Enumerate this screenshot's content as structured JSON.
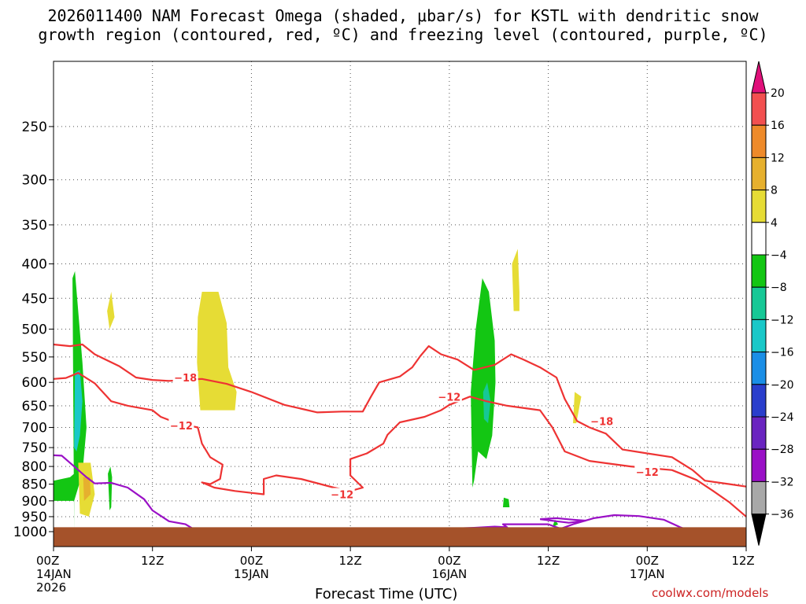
{
  "title_line_1": "2026011400 NAM Forecast Omega (shaded, μbar/s) for KSTL with dendritic snow",
  "title_line_2": "growth region (contoured, red, ºC) and freezing level (contoured, purple, ºC)",
  "credit": "coolwx.com/models",
  "chart_data": {
    "type": "area",
    "title": "2026011400 NAM Forecast Omega (shaded, μbar/s) for KSTL with dendritic snow growth region (contoured, red, ºC) and freezing level (contoured, purple, ºC)",
    "xlabel": "Forecast Time (UTC)",
    "ylabel": "",
    "x_unit": "forecast hour from 00Z 14 JAN 2026",
    "xlim": [
      0,
      84
    ],
    "ylim_hPa": [
      1000,
      200
    ],
    "y_scale": "log-pressure",
    "grid": true,
    "x_ticks": [
      {
        "hour": 0,
        "lines": [
          "00Z",
          "14JAN",
          "2026"
        ]
      },
      {
        "hour": 12,
        "lines": [
          "12Z"
        ]
      },
      {
        "hour": 24,
        "lines": [
          "00Z",
          "15JAN"
        ]
      },
      {
        "hour": 36,
        "lines": [
          "12Z"
        ]
      },
      {
        "hour": 48,
        "lines": [
          "00Z",
          "16JAN"
        ]
      },
      {
        "hour": 60,
        "lines": [
          "12Z"
        ]
      },
      {
        "hour": 72,
        "lines": [
          "00Z",
          "17JAN"
        ]
      },
      {
        "hour": 84,
        "lines": [
          "12Z"
        ]
      }
    ],
    "y_ticks": [
      250,
      300,
      350,
      400,
      450,
      500,
      550,
      600,
      650,
      700,
      750,
      800,
      850,
      900,
      950,
      1000
    ],
    "colorbar": {
      "labels": [
        "20",
        "16",
        "12",
        "8",
        "4",
        "−4",
        "−8",
        "−12",
        "−16",
        "−20",
        "−24",
        "−28",
        "−32",
        "−36"
      ],
      "bins": [
        {
          "min": 20,
          "max": null,
          "color": "#e0107a"
        },
        {
          "min": 16,
          "max": 20,
          "color": "#f25050"
        },
        {
          "min": 12,
          "max": 16,
          "color": "#ee8a2a"
        },
        {
          "min": 8,
          "max": 12,
          "color": "#e6b02e"
        },
        {
          "min": 4,
          "max": 8,
          "color": "#e6dc35"
        },
        {
          "min": -4,
          "max": 4,
          "color": "#ffffff"
        },
        {
          "min": -8,
          "max": -4,
          "color": "#13c613"
        },
        {
          "min": -12,
          "max": -8,
          "color": "#16c896"
        },
        {
          "min": -16,
          "max": -12,
          "color": "#19c8c8"
        },
        {
          "min": -20,
          "max": -16,
          "color": "#1a8ee6"
        },
        {
          "min": -24,
          "max": -20,
          "color": "#2a3ecc"
        },
        {
          "min": -28,
          "max": -24,
          "color": "#6a24c0"
        },
        {
          "min": -32,
          "max": -28,
          "color": "#9a10c6"
        },
        {
          "min": -36,
          "max": -32,
          "color": "#a8a8a8"
        },
        {
          "min": null,
          "max": -36,
          "color": "#000000"
        }
      ]
    },
    "omega_regions": [
      {
        "name": "ascent-1",
        "value": -6,
        "color": "#13c613",
        "points": [
          [
            2.5,
            1000
          ],
          [
            2.3,
            420
          ],
          [
            2.6,
            410
          ],
          [
            3.5,
            560
          ],
          [
            4.0,
            700
          ],
          [
            3.5,
            820
          ],
          [
            2.5,
            900
          ],
          [
            0,
            900
          ],
          [
            0,
            840
          ],
          [
            2.0,
            830
          ],
          [
            2.5,
            820
          ]
        ]
      },
      {
        "name": "ascent-1c",
        "value": -14,
        "color": "#19c8c8",
        "points": [
          [
            2.5,
            750
          ],
          [
            2.6,
            580
          ],
          [
            3.2,
            575
          ],
          [
            3.5,
            640
          ],
          [
            3.2,
            720
          ],
          [
            2.8,
            760
          ]
        ]
      },
      {
        "name": "ascent-2",
        "value": -6,
        "color": "#13c613",
        "points": [
          [
            6.8,
            930
          ],
          [
            6.6,
            820
          ],
          [
            6.9,
            800
          ],
          [
            7.1,
            830
          ],
          [
            7.0,
            920
          ]
        ]
      },
      {
        "name": "ascent-3",
        "value": -6,
        "color": "#13c613",
        "points": [
          [
            50.8,
            860
          ],
          [
            50.6,
            620
          ],
          [
            51.2,
            500
          ],
          [
            52.0,
            420
          ],
          [
            52.8,
            440
          ],
          [
            53.5,
            520
          ],
          [
            53.6,
            600
          ],
          [
            53.2,
            720
          ],
          [
            52.5,
            780
          ],
          [
            51.5,
            760
          ],
          [
            51.0,
            840
          ]
        ]
      },
      {
        "name": "ascent-3c",
        "value": -12,
        "color": "#16c896",
        "points": [
          [
            52.2,
            680
          ],
          [
            52.1,
            620
          ],
          [
            52.6,
            600
          ],
          [
            53.0,
            640
          ],
          [
            52.7,
            690
          ]
        ]
      },
      {
        "name": "ascent-4",
        "value": -6,
        "color": "#13c613",
        "points": [
          [
            54.5,
            920
          ],
          [
            54.6,
            890
          ],
          [
            55.2,
            895
          ],
          [
            55.3,
            920
          ]
        ]
      },
      {
        "name": "ascent-5",
        "value": -6,
        "color": "#13c613",
        "points": [
          [
            60.5,
            985
          ],
          [
            60.8,
            960
          ],
          [
            61.2,
            975
          ]
        ]
      },
      {
        "name": "descent-1",
        "value": 6,
        "color": "#e6dc35",
        "points": [
          [
            3.2,
            940
          ],
          [
            3.0,
            790
          ],
          [
            4.5,
            790
          ],
          [
            5.0,
            880
          ],
          [
            4.3,
            950
          ]
        ]
      },
      {
        "name": "descent-1b",
        "value": 9,
        "color": "#e6b02e",
        "points": [
          [
            3.7,
            900
          ],
          [
            3.6,
            830
          ],
          [
            4.4,
            830
          ],
          [
            4.5,
            880
          ]
        ]
      },
      {
        "name": "descent-2",
        "value": 6,
        "color": "#e6dc35",
        "points": [
          [
            6.8,
            500
          ],
          [
            6.5,
            470
          ],
          [
            7.0,
            440
          ],
          [
            7.4,
            480
          ]
        ]
      },
      {
        "name": "descent-3",
        "value": 6,
        "color": "#e6dc35",
        "points": [
          [
            17.8,
            660
          ],
          [
            17.4,
            560
          ],
          [
            17.5,
            480
          ],
          [
            18.0,
            440
          ],
          [
            20.0,
            440
          ],
          [
            21.0,
            490
          ],
          [
            21.2,
            570
          ],
          [
            22.2,
            620
          ],
          [
            22.0,
            660
          ]
        ]
      },
      {
        "name": "descent-4",
        "value": 6,
        "color": "#e6dc35",
        "points": [
          [
            55.8,
            470
          ],
          [
            55.6,
            400
          ],
          [
            56.3,
            380
          ],
          [
            56.5,
            440
          ],
          [
            56.5,
            470
          ]
        ]
      },
      {
        "name": "descent-5",
        "value": 6,
        "color": "#e6dc35",
        "points": [
          [
            63.0,
            690
          ],
          [
            63.2,
            620
          ],
          [
            64.0,
            630
          ],
          [
            63.4,
            690
          ]
        ]
      }
    ],
    "contours": [
      {
        "name": "dgz-minus12",
        "level": -12,
        "color": "#ee3333",
        "labels": [
          {
            "text": "−12",
            "at": [
              15.5,
              695
            ]
          },
          {
            "text": "−12",
            "at": [
              35.0,
              880
            ]
          },
          {
            "text": "−12",
            "at": [
              48.0,
              630
            ]
          },
          {
            "text": "−12",
            "at": [
              72.0,
              815
            ]
          }
        ],
        "points": [
          [
            0,
            593
          ],
          [
            1.5,
            591
          ],
          [
            3.0,
            581
          ],
          [
            5.0,
            602
          ],
          [
            7.0,
            640
          ],
          [
            9.0,
            650
          ],
          [
            12.0,
            660
          ],
          [
            13.0,
            675
          ],
          [
            15.0,
            690
          ],
          [
            17.5,
            700
          ],
          [
            18.0,
            740
          ],
          [
            19.0,
            775
          ],
          [
            20.5,
            795
          ],
          [
            20.2,
            835
          ],
          [
            19.0,
            850
          ],
          [
            18.0,
            845
          ],
          [
            19.5,
            860
          ],
          [
            22.0,
            870
          ],
          [
            25.5,
            880
          ],
          [
            25.5,
            835
          ],
          [
            27.0,
            825
          ],
          [
            30.0,
            835
          ],
          [
            34.0,
            860
          ],
          [
            36.0,
            870
          ],
          [
            37.5,
            860
          ],
          [
            36.0,
            825
          ],
          [
            36.0,
            780
          ],
          [
            38.0,
            765
          ],
          [
            40.0,
            740
          ],
          [
            40.5,
            718
          ],
          [
            42.0,
            688
          ],
          [
            45.0,
            675
          ],
          [
            47.0,
            660
          ],
          [
            48.0,
            648
          ],
          [
            50.5,
            630
          ],
          [
            52.5,
            640
          ],
          [
            55.0,
            650
          ],
          [
            59.0,
            660
          ],
          [
            60.5,
            700
          ],
          [
            62.0,
            760
          ],
          [
            65.0,
            785
          ],
          [
            70.0,
            800
          ],
          [
            75.0,
            810
          ],
          [
            78.0,
            838
          ],
          [
            80.0,
            870
          ],
          [
            82.0,
            905
          ],
          [
            84,
            950
          ]
        ]
      },
      {
        "name": "dgz-minus18",
        "level": -18,
        "color": "#ee3333",
        "labels": [
          {
            "text": "−18",
            "at": [
              16.0,
              590
            ]
          },
          {
            "text": "−18",
            "at": [
              66.5,
              685
            ]
          }
        ],
        "points": [
          [
            0,
            527
          ],
          [
            2.0,
            530
          ],
          [
            3.5,
            527
          ],
          [
            5.0,
            545
          ],
          [
            8.0,
            568
          ],
          [
            10.0,
            590
          ],
          [
            12.0,
            595
          ],
          [
            14.0,
            597
          ],
          [
            18.0,
            593
          ],
          [
            21.0,
            603
          ],
          [
            24.0,
            620
          ],
          [
            28.0,
            648
          ],
          [
            32.0,
            665
          ],
          [
            35.0,
            663
          ],
          [
            37.5,
            663
          ],
          [
            38.5,
            630
          ],
          [
            39.5,
            600
          ],
          [
            42.0,
            588
          ],
          [
            43.5,
            570
          ],
          [
            44.5,
            548
          ],
          [
            45.5,
            530
          ],
          [
            47.0,
            545
          ],
          [
            49.0,
            555
          ],
          [
            51.0,
            575
          ],
          [
            53.5,
            565
          ],
          [
            55.5,
            545
          ],
          [
            57.0,
            555
          ],
          [
            59.0,
            570
          ],
          [
            61.0,
            590
          ],
          [
            62.0,
            635
          ],
          [
            63.5,
            685
          ],
          [
            65.0,
            700
          ],
          [
            67.0,
            715
          ],
          [
            69.0,
            755
          ],
          [
            72.0,
            765
          ],
          [
            75.0,
            775
          ],
          [
            77.5,
            810
          ],
          [
            79.0,
            840
          ],
          [
            82.0,
            850
          ],
          [
            84,
            857
          ]
        ]
      },
      {
        "name": "freezing-level",
        "level": 0,
        "color": "#9a10c6",
        "labels": [],
        "points": [
          [
            0,
            770
          ],
          [
            1.0,
            771
          ],
          [
            2.5,
            800
          ],
          [
            4.0,
            830
          ],
          [
            5.0,
            848
          ],
          [
            7.0,
            846
          ],
          [
            9.0,
            860
          ],
          [
            11.0,
            895
          ],
          [
            12.0,
            930
          ],
          [
            14.0,
            965
          ],
          [
            16.0,
            975
          ],
          [
            17.5,
            1000
          ]
        ]
      },
      {
        "name": "freezing-level-2",
        "level": 0,
        "color": "#9a10c6",
        "labels": [],
        "points": [
          [
            47.5,
            990
          ],
          [
            49.0,
            989
          ],
          [
            51.0,
            987
          ],
          [
            53.5,
            983
          ],
          [
            55.0,
            985
          ],
          [
            54.5,
            975
          ],
          [
            57.0,
            975
          ],
          [
            60.0,
            975
          ],
          [
            61.5,
            990
          ],
          [
            63.0,
            975
          ],
          [
            65.5,
            955
          ],
          [
            68.0,
            945
          ],
          [
            71.0,
            948
          ],
          [
            74.0,
            960
          ],
          [
            76.0,
            985
          ],
          [
            76.5,
            990
          ]
        ]
      },
      {
        "name": "freezing-level-3",
        "level": 0,
        "color": "#9a10c6",
        "labels": [],
        "points": [
          [
            59.0,
            958
          ],
          [
            61.0,
            955
          ],
          [
            63.0,
            960
          ],
          [
            64.5,
            963
          ],
          [
            62.5,
            970
          ],
          [
            61.0,
            965
          ],
          [
            59.0,
            958
          ]
        ]
      }
    ],
    "terrain": {
      "name": "surface",
      "color": "#a5522a",
      "top_hPa": 985
    }
  }
}
